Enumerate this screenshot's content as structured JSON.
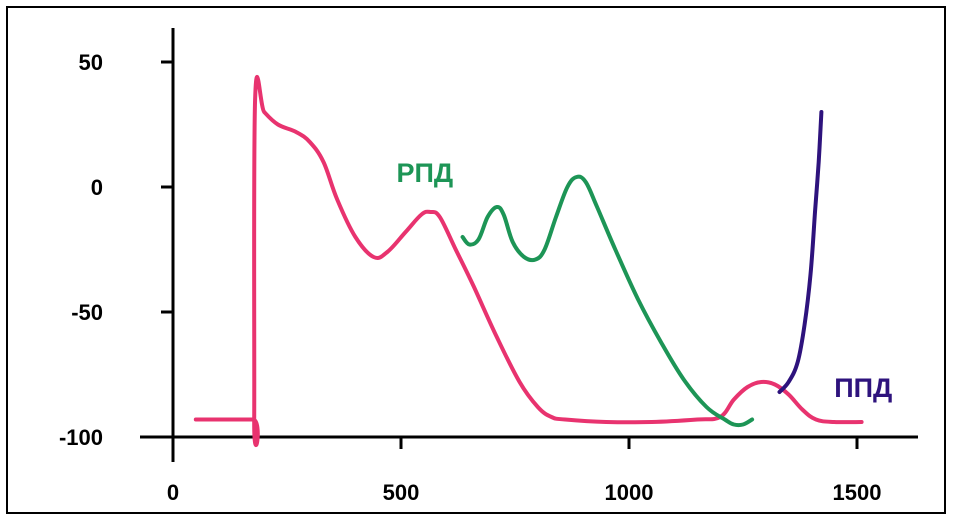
{
  "chart_data": {
    "type": "line",
    "title": "",
    "xlabel": "",
    "ylabel": "",
    "xlim": [
      0,
      1600
    ],
    "ylim": [
      -100,
      60
    ],
    "x_ticks": [
      0,
      500,
      1000,
      1500
    ],
    "x_tick_labels": [
      "0",
      "500",
      "1000",
      "1500"
    ],
    "y_ticks": [
      50,
      0,
      -50,
      -100
    ],
    "y_tick_labels": [
      "50",
      "0",
      "-50",
      "-100"
    ],
    "grid": false,
    "legend": "none",
    "series": [
      {
        "name": "",
        "color": "#e8336f",
        "points": [
          [
            50,
            -93
          ],
          [
            175,
            -93
          ],
          [
            178,
            -93
          ],
          [
            180,
            35
          ],
          [
            200,
            30
          ],
          [
            230,
            25
          ],
          [
            270,
            22
          ],
          [
            300,
            18
          ],
          [
            330,
            10
          ],
          [
            360,
            -5
          ],
          [
            400,
            -20
          ],
          [
            440,
            -28
          ],
          [
            470,
            -26
          ],
          [
            510,
            -18
          ],
          [
            545,
            -11
          ],
          [
            565,
            -10
          ],
          [
            585,
            -12
          ],
          [
            620,
            -25
          ],
          [
            660,
            -40
          ],
          [
            710,
            -60
          ],
          [
            760,
            -78
          ],
          [
            800,
            -88
          ],
          [
            830,
            -92
          ],
          [
            860,
            -93
          ],
          [
            950,
            -94
          ],
          [
            1050,
            -94
          ],
          [
            1150,
            -93
          ],
          [
            1200,
            -92
          ],
          [
            1230,
            -85
          ],
          [
            1260,
            -80
          ],
          [
            1290,
            -78
          ],
          [
            1320,
            -79
          ],
          [
            1350,
            -83
          ],
          [
            1380,
            -89
          ],
          [
            1410,
            -93
          ],
          [
            1450,
            -94
          ],
          [
            1510,
            -94
          ]
        ]
      },
      {
        "name": "РПД",
        "color": "#1d9556",
        "points": [
          [
            635,
            -20
          ],
          [
            650,
            -23
          ],
          [
            670,
            -21
          ],
          [
            690,
            -12
          ],
          [
            710,
            -8
          ],
          [
            725,
            -11
          ],
          [
            745,
            -22
          ],
          [
            770,
            -28
          ],
          [
            795,
            -29
          ],
          [
            815,
            -25
          ],
          [
            840,
            -12
          ],
          [
            865,
            0
          ],
          [
            885,
            4
          ],
          [
            905,
            2
          ],
          [
            930,
            -8
          ],
          [
            970,
            -25
          ],
          [
            1020,
            -45
          ],
          [
            1070,
            -62
          ],
          [
            1120,
            -77
          ],
          [
            1170,
            -88
          ],
          [
            1210,
            -93
          ],
          [
            1230,
            -95
          ],
          [
            1250,
            -95
          ],
          [
            1270,
            -93
          ]
        ]
      },
      {
        "name": "ППД",
        "color": "#2e137d",
        "points": [
          [
            1330,
            -82
          ],
          [
            1350,
            -78
          ],
          [
            1370,
            -70
          ],
          [
            1385,
            -55
          ],
          [
            1398,
            -35
          ],
          [
            1408,
            -10
          ],
          [
            1416,
            10
          ],
          [
            1422,
            30
          ]
        ]
      }
    ],
    "annotations": [
      "РПД",
      "ППД"
    ]
  }
}
